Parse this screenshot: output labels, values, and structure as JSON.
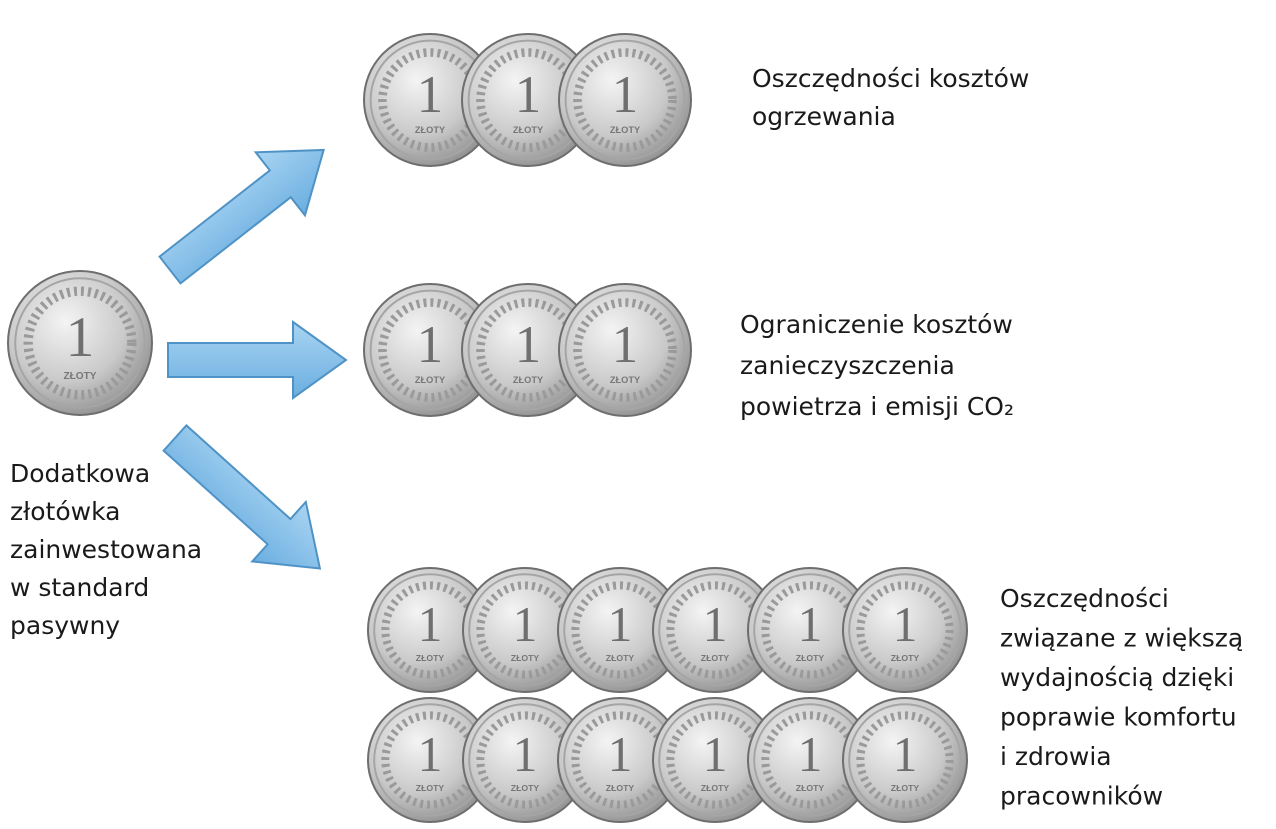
{
  "coin": {
    "numeral": "1",
    "label": "ZŁOTY"
  },
  "source": {
    "lines": [
      "Dodatkowa",
      "złotówka",
      "zainwestowana",
      "w standard",
      "pasywny"
    ]
  },
  "outcomes": [
    {
      "lines": [
        "Oszczędności kosztów",
        "ogrzewania"
      ]
    },
    {
      "lines": [
        "Ograniczenie kosztów",
        "zanieczyszczenia",
        "powietrza i emisji CO₂"
      ]
    },
    {
      "lines": [
        "Oszczędności",
        "związane z większą",
        "wydajnością dzięki",
        "poprawie komfortu",
        "i zdrowia",
        "pracowników"
      ]
    }
  ]
}
